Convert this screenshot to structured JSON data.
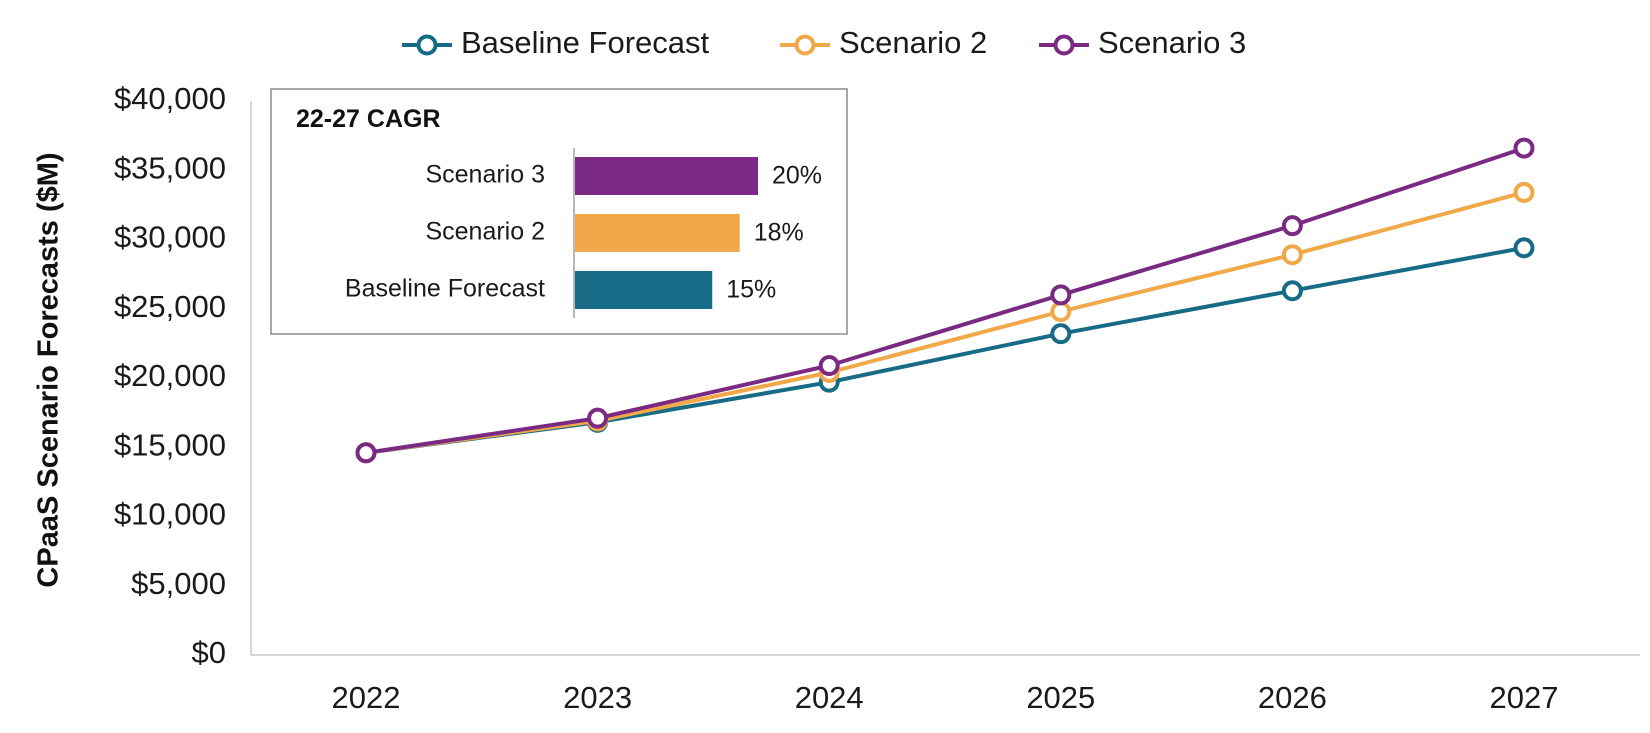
{
  "chart_data": [
    {
      "type": "line",
      "title": "",
      "xlabel": "",
      "ylabel": "CPaaS Scenario Forecasts ($M)",
      "categories": [
        "2022",
        "2023",
        "2024",
        "2025",
        "2026",
        "2027"
      ],
      "ylim": [
        0,
        40000
      ],
      "yticks": [
        0,
        5000,
        10000,
        15000,
        20000,
        25000,
        30000,
        35000,
        40000
      ],
      "ytick_labels": [
        "$0",
        "$5,000",
        "$10,000",
        "$15,000",
        "$20,000",
        "$25,000",
        "$30,000",
        "$35,000",
        "$40,000"
      ],
      "grid": false,
      "legend_position": "top-center",
      "series": [
        {
          "name": "Baseline Forecast",
          "color": "#176B87",
          "values": [
            14600,
            16800,
            19700,
            23200,
            26300,
            29400
          ]
        },
        {
          "name": "Scenario 2",
          "color": "#F0A848",
          "values": [
            14600,
            16900,
            20400,
            24800,
            28900,
            33400
          ]
        },
        {
          "name": "Scenario 3",
          "color": "#7A2A82",
          "values": [
            14600,
            17100,
            20900,
            26000,
            31000,
            36600
          ]
        }
      ]
    },
    {
      "type": "bar",
      "orientation": "horizontal",
      "title": "22-27 CAGR",
      "categories": [
        "Scenario 3",
        "Scenario 2",
        "Baseline Forecast"
      ],
      "values": [
        20,
        18,
        15
      ],
      "value_labels": [
        "20%",
        "18%",
        "15%"
      ],
      "colors": [
        "#7A2A82",
        "#F0A848",
        "#176B87"
      ],
      "xlim": [
        0,
        20
      ]
    }
  ]
}
